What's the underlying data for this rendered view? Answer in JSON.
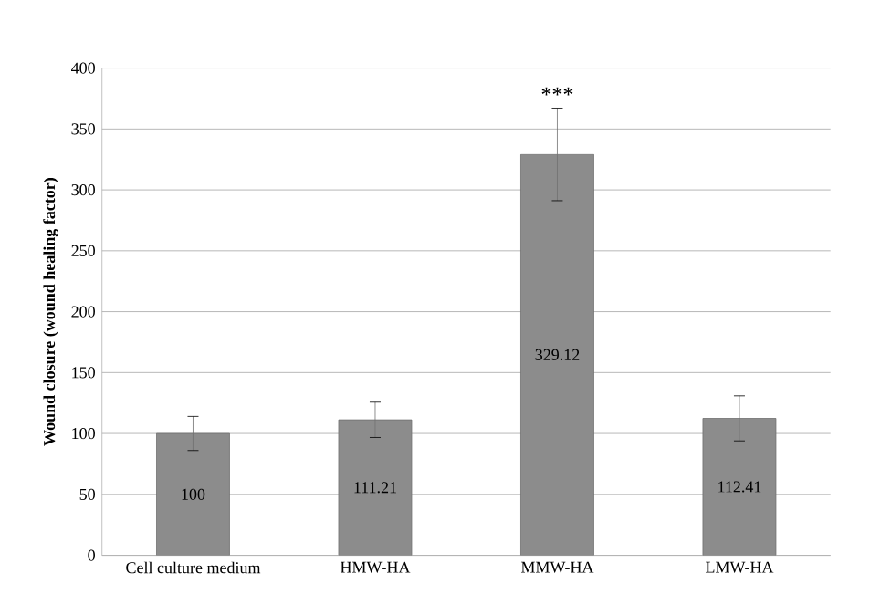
{
  "chart_data": {
    "type": "bar",
    "ylabel": "Wound closure (wound healing factor)",
    "categories": [
      "Cell culture medium",
      "HMW-HA",
      "MMW-HA",
      "LMW-HA"
    ],
    "values": [
      100,
      111.21,
      329.12,
      112.41
    ],
    "errors": [
      14,
      14.5,
      38,
      18.5
    ],
    "color": "#8c8c8c",
    "ylim": [
      0,
      400
    ],
    "yticks": [
      0,
      50,
      100,
      150,
      200,
      250,
      300,
      350,
      400
    ],
    "grid": "y",
    "data_labels": true,
    "annotations": [
      "***"
    ]
  }
}
